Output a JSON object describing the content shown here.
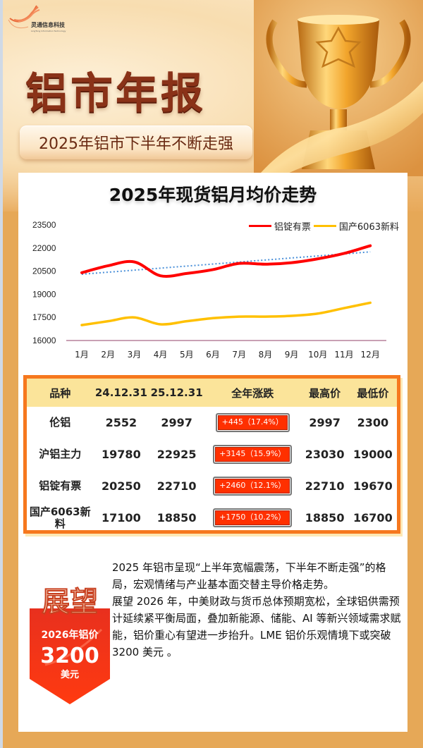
{
  "header": {
    "logo_name": "灵通信息科技",
    "logo_subtitle": "LingTong Information Technology",
    "title": "铝市年报",
    "subtitle": "2025年铝市下半年不断走强"
  },
  "chart_data": {
    "type": "line",
    "title": "2025年现货铝月均价走势",
    "xlabel": "",
    "ylabel": "",
    "categories": [
      "1月",
      "2月",
      "3月",
      "4月",
      "5月",
      "6月",
      "7月",
      "8月",
      "9月",
      "10月",
      "11月",
      "12月"
    ],
    "y_ticks": [
      16000,
      17500,
      19000,
      20500,
      22000,
      23500
    ],
    "ylim": [
      16000,
      23500
    ],
    "grid": false,
    "legend_position": "top-right",
    "series": [
      {
        "name": "铝锭有票",
        "color": "#ff0000",
        "values": [
          20400,
          20850,
          21100,
          20200,
          20350,
          20600,
          21000,
          20950,
          21050,
          21300,
          21650,
          22150
        ]
      },
      {
        "name": "国产6063新料",
        "color": "#ffc000",
        "values": [
          17000,
          17250,
          17500,
          17050,
          17250,
          17450,
          17550,
          17550,
          17600,
          17750,
          18100,
          18450
        ]
      }
    ],
    "trendline": {
      "series": "铝锭有票",
      "style": "dotted",
      "color": "#4a90d9",
      "start": 20300,
      "end": 21750
    }
  },
  "table": {
    "headers": [
      "品种",
      "24.12.31",
      "25.12.31",
      "全年涨跌",
      "最高价",
      "最低价"
    ],
    "rows": [
      {
        "name": "伦铝",
        "start": "2552",
        "end": "2997",
        "change": "+445（17.4%）",
        "high": "2997",
        "low": "2300"
      },
      {
        "name": "沪铝主力",
        "start": "19780",
        "end": "22925",
        "change": "+3145（15.9%）",
        "high": "23030",
        "low": "19000"
      },
      {
        "name": "铝锭有票",
        "start": "20250",
        "end": "22710",
        "change": "+2460（12.1%）",
        "high": "22710",
        "low": "19670"
      },
      {
        "name": "国产6063新料",
        "start": "17100",
        "end": "18850",
        "change": "+1750（10.2%）",
        "high": "18850",
        "low": "16700"
      }
    ]
  },
  "outlook": {
    "badge_title": "展望",
    "badge_line1": "2026年铝价",
    "badge_price": "3200",
    "badge_unit": "美元",
    "paragraph1": "2025 年铝市呈现“上半年宽幅震荡，下半年不断走强”的格局，宏观情绪与产业基本面交替主导价格走势。",
    "paragraph2": "展望 2026 年，中美财政与货币总体预期宽松，全球铝供需预计延续紧平衡局面，叠加新能源、储能、AI 等新兴领域需求赋能，铝价重心有望进一步抬升。LME 铝价乐观情境下或突破 3200 美元 。"
  },
  "colors": {
    "title_brown": "#8a3218",
    "table_border": "#f6781e",
    "table_header_bg": "#fbe49a",
    "change_red": "#ff3000",
    "page_bg": "#e6a857"
  }
}
